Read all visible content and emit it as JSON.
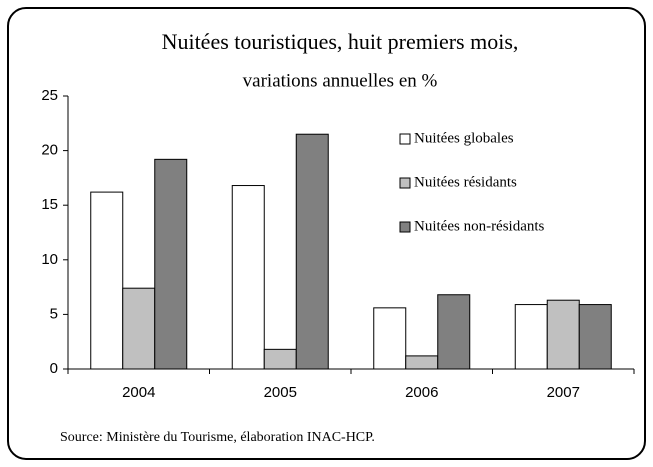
{
  "chart_data": {
    "type": "bar",
    "title": "Nuitées touristiques, huit premiers mois,",
    "subtitle": "variations annuelles en %",
    "source": "Source: Ministère du Tourisme, élaboration INAC-HCP.",
    "categories": [
      "2004",
      "2005",
      "2006",
      "2007"
    ],
    "series": [
      {
        "name": "Nuitées globales",
        "color": "#ffffff",
        "values": [
          16.2,
          16.8,
          5.6,
          5.9
        ]
      },
      {
        "name": "Nuitées résidants",
        "color": "#c0c0c0",
        "values": [
          7.4,
          1.8,
          1.2,
          6.3
        ]
      },
      {
        "name": "Nuitées non-résidants",
        "color": "#808080",
        "values": [
          19.2,
          21.5,
          6.8,
          5.9
        ]
      }
    ],
    "ylim": [
      0,
      25
    ],
    "yticks": [
      0,
      5,
      10,
      15,
      20,
      25
    ],
    "grid": false
  }
}
